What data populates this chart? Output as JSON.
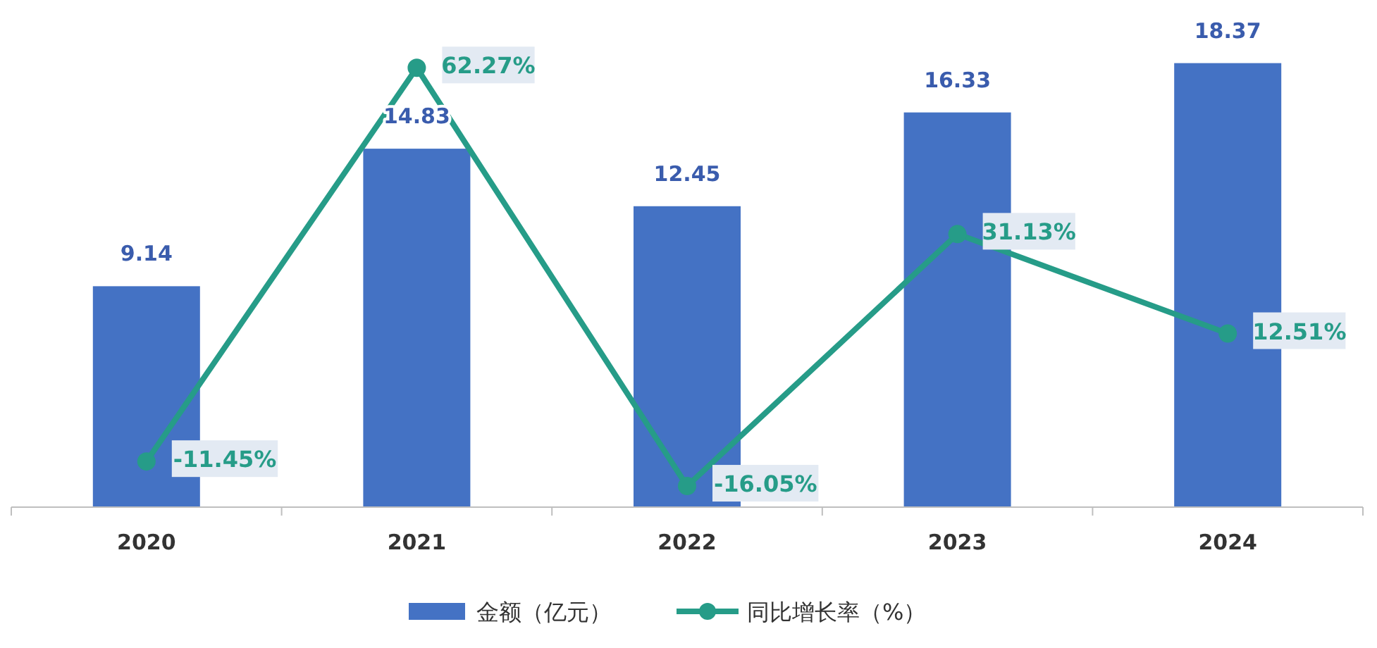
{
  "chart_data": {
    "type": "bar",
    "categories": [
      "2020",
      "2021",
      "2022",
      "2023",
      "2024"
    ],
    "series": [
      {
        "name": "金额（亿元）",
        "color": "#4472c4",
        "values": [
          9.14,
          14.83,
          12.45,
          16.33,
          18.37
        ]
      },
      {
        "name": "同比增长率（%）",
        "type": "line",
        "axis": "y2",
        "color": "#269c88",
        "marker": "circle",
        "values": [
          -11.45,
          62.27,
          -16.05,
          31.13,
          12.51
        ],
        "value_labels": [
          "-11.45%",
          "62.27%",
          "-16.05%",
          "31.13%",
          "12.51%"
        ]
      }
    ],
    "ylim": [
      0,
      19
    ],
    "y2lim": [
      -20,
      66
    ],
    "tick_labels": "x",
    "data_labels": true,
    "legend": "bottom"
  }
}
